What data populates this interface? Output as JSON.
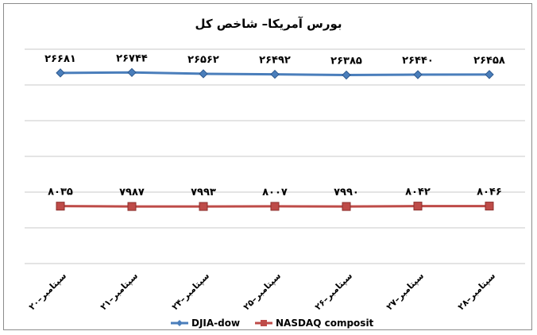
{
  "chart_data": {
    "type": "line",
    "title": "بورس آمریکا– شاخص کل",
    "categories": [
      "۲۰–سپتامبر",
      "۲۱–سپتامبر",
      "۲۴–سپتامبر",
      "۲۵–سپتامبر",
      "۲۶–سپتامبر",
      "۲۷–سپتامبر",
      "۲۸–سپتامبر"
    ],
    "series": [
      {
        "name": "DJIA-dow",
        "values": [
          26681,
          26744,
          26562,
          26492,
          26385,
          26440,
          26458
        ],
        "labels": [
          "۲۶۶۸۱",
          "۲۶۷۴۴",
          "۲۶۵۶۲",
          "۲۶۴۹۲",
          "۲۶۳۸۵",
          "۲۶۴۴۰",
          "۲۶۴۵۸"
        ],
        "color": "#4a7ebb",
        "marker": "diamond"
      },
      {
        "name": "NASDAQ composit",
        "values": [
          8035,
          7987,
          7993,
          8007,
          7990,
          8042,
          8046
        ],
        "labels": [
          "۸۰۳۵",
          "۷۹۸۷",
          "۷۹۹۳",
          "۸۰۰۷",
          "۷۹۹۰",
          "۸۰۴۲",
          "۸۰۴۶"
        ],
        "color": "#be4b48",
        "marker": "square"
      }
    ],
    "ylim": [
      0,
      30000
    ],
    "grid": true,
    "legend": "bottom"
  }
}
